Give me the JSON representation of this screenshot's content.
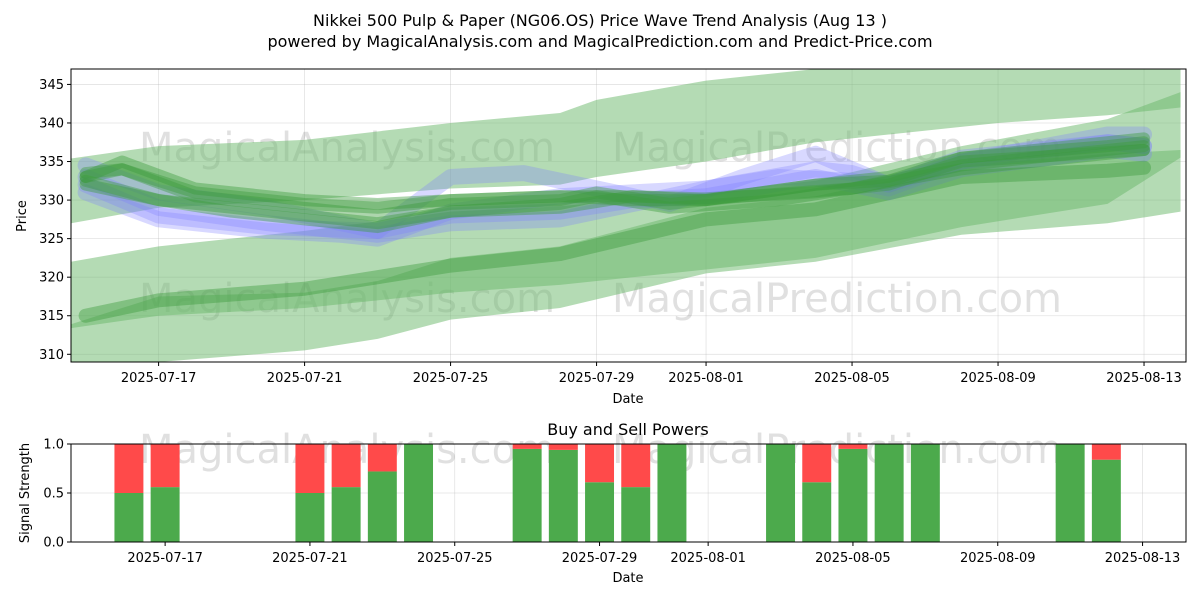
{
  "title": "Nikkei 500 Pulp & Paper (NG06.OS) Price Wave Trend Analysis (Aug 13 )",
  "subtitle": "powered by MagicalAnalysis.com and MagicalPrediction.com and Predict-Price.com",
  "watermarks": [
    "MagicalAnalysis.com",
    "MagicalPrediction.com"
  ],
  "colors": {
    "buy": "#4caa4c",
    "sell": "#ff4a4a",
    "wave_green": "#3c9c3c",
    "wave_blue": "#7f7fff",
    "band_green": "#6ab86a"
  },
  "chart_data": [
    {
      "type": "area",
      "xlabel": "Date",
      "ylabel": "Price",
      "x_range": [
        "2025-07-14",
        "2025-08-14"
      ],
      "ylim": [
        309,
        347
      ],
      "yticks": [
        310,
        315,
        320,
        325,
        330,
        335,
        340,
        345
      ],
      "xticks": [
        "2025-07-17",
        "2025-07-21",
        "2025-07-25",
        "2025-07-29",
        "2025-08-01",
        "2025-08-05",
        "2025-08-09",
        "2025-08-13"
      ],
      "grid": true,
      "bands": [
        {
          "x": [
            "2025-07-14",
            "2025-07-17",
            "2025-07-21",
            "2025-07-25",
            "2025-07-28",
            "2025-07-29",
            "2025-08-01",
            "2025-08-04",
            "2025-08-06",
            "2025-08-09",
            "2025-08-12",
            "2025-08-14"
          ],
          "upper": [
            335,
            337,
            337.8,
            340,
            341.3,
            343,
            345.5,
            347,
            347,
            347,
            347,
            347
          ],
          "lower": [
            326.5,
            329,
            330,
            331.5,
            332,
            333,
            335,
            337.5,
            338.5,
            340,
            341,
            342
          ]
        },
        {
          "x": [
            "2025-07-14",
            "2025-07-17",
            "2025-07-21",
            "2025-07-25",
            "2025-07-28",
            "2025-08-01",
            "2025-08-04",
            "2025-08-08",
            "2025-08-12",
            "2025-08-14"
          ],
          "upper": [
            321.5,
            324,
            326,
            328.5,
            329.2,
            331,
            332.5,
            337,
            340.5,
            344
          ],
          "lower": [
            313,
            315,
            316,
            318,
            319,
            321,
            322.5,
            326.5,
            329.5,
            335.5
          ]
        },
        {
          "x": [
            "2025-07-14",
            "2025-07-17",
            "2025-07-21",
            "2025-07-23",
            "2025-07-25",
            "2025-07-28",
            "2025-08-01",
            "2025-08-04",
            "2025-08-08",
            "2025-08-12",
            "2025-08-14"
          ],
          "upper": [
            313,
            317.5,
            318,
            319.5,
            322.5,
            324,
            329,
            330.5,
            334.5,
            336,
            336.5
          ],
          "lower": [
            307,
            309,
            310.5,
            312,
            314.5,
            316,
            320.5,
            322,
            325.5,
            327,
            328.5
          ]
        }
      ],
      "green_waves": [
        {
          "x": [
            "2025-07-15",
            "2025-07-17",
            "2025-07-21",
            "2025-07-25",
            "2025-07-28",
            "2025-08-01",
            "2025-08-04",
            "2025-08-08",
            "2025-08-12",
            "2025-08-13"
          ],
          "values": [
            315,
            317,
            318.5,
            321.5,
            323,
            327.5,
            328.8,
            333,
            333.8,
            334.2
          ]
        },
        {
          "x": [
            "2025-07-15",
            "2025-07-16",
            "2025-07-18",
            "2025-07-21",
            "2025-07-23",
            "2025-07-25",
            "2025-07-28",
            "2025-07-30",
            "2025-08-01",
            "2025-08-04",
            "2025-08-06",
            "2025-08-08",
            "2025-08-12",
            "2025-08-13"
          ],
          "values": [
            333,
            335,
            331.5,
            330,
            329.5,
            330,
            330.5,
            330.5,
            330.2,
            331,
            332,
            335,
            336.2,
            336.5
          ]
        },
        {
          "x": [
            "2025-07-15",
            "2025-07-16",
            "2025-07-18",
            "2025-07-21",
            "2025-07-23",
            "2025-07-25",
            "2025-07-28",
            "2025-07-30",
            "2025-08-01",
            "2025-08-04",
            "2025-08-06",
            "2025-08-08",
            "2025-08-12",
            "2025-08-13"
          ],
          "values": [
            333.5,
            334,
            331,
            329.5,
            329,
            330,
            330.5,
            330,
            330,
            332,
            332.5,
            335.5,
            337,
            337.5
          ]
        },
        {
          "x": [
            "2025-07-15",
            "2025-07-17",
            "2025-07-19",
            "2025-07-21",
            "2025-07-23",
            "2025-07-25",
            "2025-07-28",
            "2025-07-29",
            "2025-07-31",
            "2025-08-03",
            "2025-08-05",
            "2025-08-08",
            "2025-08-12",
            "2025-08-13"
          ],
          "values": [
            332,
            330,
            328.5,
            327.5,
            326.5,
            328.5,
            329.5,
            330.5,
            329,
            330,
            331.5,
            334.5,
            336.5,
            337
          ]
        },
        {
          "x": [
            "2025-07-15",
            "2025-07-16",
            "2025-07-18",
            "2025-07-21",
            "2025-07-23",
            "2025-07-25",
            "2025-07-28",
            "2025-07-29",
            "2025-07-31",
            "2025-08-02",
            "2025-08-05",
            "2025-08-08",
            "2025-08-12",
            "2025-08-13"
          ],
          "values": [
            333,
            334,
            330.5,
            329,
            328,
            329.5,
            330,
            331,
            329.5,
            330.5,
            331.5,
            334,
            336,
            336.5
          ]
        },
        {
          "x": [
            "2025-07-15",
            "2025-07-17",
            "2025-07-20",
            "2025-07-23",
            "2025-07-25",
            "2025-07-28",
            "2025-07-30",
            "2025-08-01",
            "2025-08-04",
            "2025-08-06",
            "2025-08-08",
            "2025-08-12",
            "2025-08-13"
          ],
          "values": [
            332.5,
            330,
            328.5,
            327,
            328.5,
            329,
            330.5,
            330,
            332,
            333,
            335.5,
            337.5,
            338
          ]
        }
      ],
      "blue_waves": [
        {
          "x": [
            "2025-07-15",
            "2025-07-17",
            "2025-07-20",
            "2025-07-22",
            "2025-07-23",
            "2025-07-25",
            "2025-07-28",
            "2025-07-30",
            "2025-08-01",
            "2025-08-04",
            "2025-08-05",
            "2025-08-06",
            "2025-08-08",
            "2025-08-12",
            "2025-08-13"
          ],
          "values": [
            331,
            327.5,
            326,
            325.5,
            325,
            328.5,
            330.5,
            331,
            331.5,
            334,
            333.5,
            332,
            335.5,
            337.5,
            337
          ]
        },
        {
          "x": [
            "2025-07-15",
            "2025-07-17",
            "2025-07-20",
            "2025-07-23",
            "2025-07-25",
            "2025-07-28",
            "2025-07-30",
            "2025-08-01",
            "2025-08-03",
            "2025-08-05",
            "2025-08-06",
            "2025-08-08",
            "2025-08-12",
            "2025-08-13"
          ],
          "values": [
            333,
            329,
            327,
            325.5,
            327,
            327.5,
            329.5,
            331.5,
            333,
            332.5,
            331.5,
            335,
            337.5,
            337
          ]
        },
        {
          "x": [
            "2025-07-15",
            "2025-07-17",
            "2025-07-20",
            "2025-07-22",
            "2025-07-23",
            "2025-07-25",
            "2025-07-27",
            "2025-07-29",
            "2025-07-31",
            "2025-08-02",
            "2025-08-04",
            "2025-08-06",
            "2025-08-08",
            "2025-08-12",
            "2025-08-13"
          ],
          "values": [
            334.5,
            331,
            329,
            327,
            326,
            333,
            333.5,
            331.5,
            329.5,
            333,
            336,
            332,
            335,
            338.5,
            338.5
          ]
        },
        {
          "x": [
            "2025-07-15",
            "2025-07-17",
            "2025-07-20",
            "2025-07-23",
            "2025-07-25",
            "2025-07-28",
            "2025-07-30",
            "2025-08-01",
            "2025-08-04",
            "2025-08-06",
            "2025-08-08",
            "2025-08-12",
            "2025-08-13"
          ],
          "values": [
            332,
            328,
            326.5,
            326,
            328,
            328.5,
            330,
            330.5,
            333,
            331,
            334,
            336.5,
            336
          ]
        }
      ]
    },
    {
      "type": "bar",
      "title": "Buy and Sell Powers",
      "xlabel": "Date",
      "ylabel": "Signal Strength",
      "ylim": [
        0,
        1
      ],
      "yticks": [
        "0.0",
        "0.5",
        "1.0"
      ],
      "xticks": [
        "2025-07-17",
        "2025-07-21",
        "2025-07-25",
        "2025-07-29",
        "2025-08-01",
        "2025-08-05",
        "2025-08-09",
        "2025-08-13"
      ],
      "x_range": [
        "2025-07-14",
        "2025-08-14"
      ],
      "grid": true,
      "series": [
        {
          "name": "Buy",
          "dates": [
            "2025-07-16",
            "2025-07-17",
            "2025-07-21",
            "2025-07-22",
            "2025-07-23",
            "2025-07-24",
            "2025-07-27",
            "2025-07-28",
            "2025-07-29",
            "2025-07-30",
            "2025-07-31",
            "2025-08-03",
            "2025-08-04",
            "2025-08-05",
            "2025-08-06",
            "2025-08-07",
            "2025-08-11",
            "2025-08-12"
          ],
          "values": [
            0.5,
            0.56,
            0.5,
            0.56,
            0.72,
            1.0,
            0.95,
            0.94,
            0.61,
            0.56,
            1.0,
            1.0,
            0.61,
            0.95,
            1.0,
            1.0,
            1.0,
            0.84
          ]
        },
        {
          "name": "Sell",
          "dates": [
            "2025-07-16",
            "2025-07-17",
            "2025-07-21",
            "2025-07-22",
            "2025-07-23",
            "2025-07-24",
            "2025-07-27",
            "2025-07-28",
            "2025-07-29",
            "2025-07-30",
            "2025-07-31",
            "2025-08-03",
            "2025-08-04",
            "2025-08-05",
            "2025-08-06",
            "2025-08-07",
            "2025-08-11",
            "2025-08-12"
          ],
          "values": [
            0.5,
            0.44,
            0.5,
            0.44,
            0.28,
            0.0,
            0.05,
            0.06,
            0.39,
            0.44,
            0.0,
            0.0,
            0.39,
            0.05,
            0.0,
            0.0,
            0.0,
            0.16
          ]
        }
      ]
    }
  ]
}
